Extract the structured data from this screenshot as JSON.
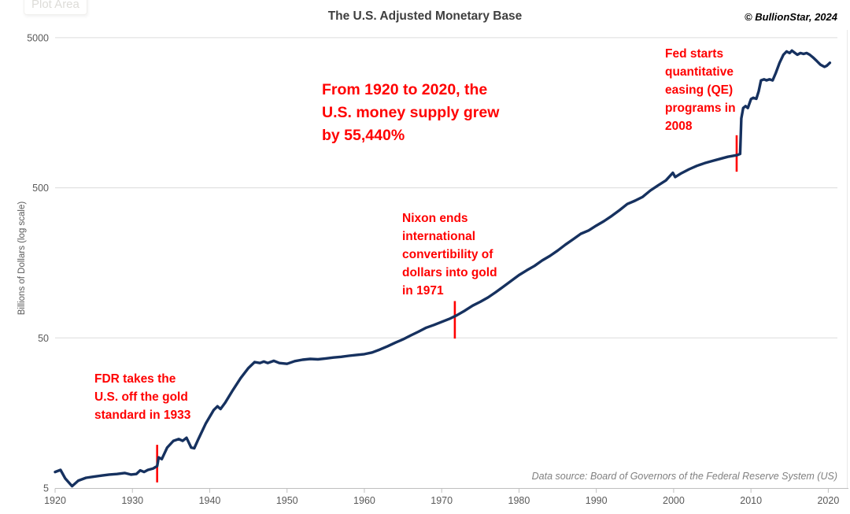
{
  "header": {
    "title": "The U.S. Adjusted Monetary Base",
    "copyright": "© BullionStar, 2024",
    "plot_area_tooltip": "Plot Area"
  },
  "footer": {
    "data_source": "Data source: Board of Governors of the Federal Reserve System (US)"
  },
  "annotations": {
    "growth": {
      "text": "From 1920 to 2020, the\nU.S. money supply grew\nby 55,440%"
    },
    "fed": {
      "text": "Fed starts\nquantitative\neasing (QE)\nprograms in\n2008"
    },
    "nixon": {
      "text": "Nixon ends\ninternational\nconvertibility of\ndollars into gold\nin 1971"
    },
    "fdr": {
      "text": "FDR takes the\nU.S. off the gold\nstandard in 1933"
    }
  },
  "colors": {
    "line": "#16315f",
    "annotation_red": "#ff0000",
    "event_marker_red": "#ff0000",
    "gridline": "#dcdcdc",
    "axis_line": "#bfbfbf",
    "tick_text": "#595959",
    "title_text": "#3f3f3f",
    "right_border": "#e9e9e9"
  },
  "chart_data": {
    "type": "line",
    "title": "The U.S. Adjusted Monetary Base",
    "xlabel": "",
    "ylabel": "Billions of Dollars (log scale)",
    "y_scale": "log",
    "y_ticks": [
      5,
      50,
      500,
      5000
    ],
    "y_range": [
      5,
      5000
    ],
    "x_ticks": [
      1920,
      1930,
      1940,
      1950,
      1960,
      1970,
      1980,
      1990,
      2000,
      2010,
      2020
    ],
    "x_range": [
      1920,
      2020.5
    ],
    "grid": "horizontal-only",
    "legend": "none",
    "series": [
      {
        "name": "U.S. Adjusted Monetary Base ($B)",
        "points": [
          [
            1920.0,
            6.4
          ],
          [
            1920.7,
            6.6
          ],
          [
            1921.3,
            5.8
          ],
          [
            1922.2,
            5.15
          ],
          [
            1923,
            5.6
          ],
          [
            1924,
            5.85
          ],
          [
            1925,
            5.95
          ],
          [
            1926,
            6.05
          ],
          [
            1927,
            6.15
          ],
          [
            1928,
            6.2
          ],
          [
            1929,
            6.3
          ],
          [
            1929.8,
            6.15
          ],
          [
            1930.5,
            6.2
          ],
          [
            1931,
            6.55
          ],
          [
            1931.5,
            6.4
          ],
          [
            1932,
            6.6
          ],
          [
            1932.7,
            6.75
          ],
          [
            1933.2,
            7.0
          ],
          [
            1933.4,
            8.0
          ],
          [
            1933.8,
            7.8
          ],
          [
            1934.5,
            9.3
          ],
          [
            1935.3,
            10.3
          ],
          [
            1936,
            10.6
          ],
          [
            1936.5,
            10.3
          ],
          [
            1937,
            10.8
          ],
          [
            1937.6,
            9.3
          ],
          [
            1938,
            9.2
          ],
          [
            1938.5,
            10.5
          ],
          [
            1939.5,
            13.5
          ],
          [
            1940.5,
            16.5
          ],
          [
            1941,
            17.5
          ],
          [
            1941.4,
            16.8
          ],
          [
            1942,
            18.5
          ],
          [
            1943,
            22.5
          ],
          [
            1944,
            27
          ],
          [
            1945,
            31.5
          ],
          [
            1945.8,
            34.5
          ],
          [
            1946.5,
            34
          ],
          [
            1947,
            34.8
          ],
          [
            1947.5,
            34
          ],
          [
            1948.3,
            35.2
          ],
          [
            1949,
            34
          ],
          [
            1950,
            33.6
          ],
          [
            1951,
            35
          ],
          [
            1952,
            35.8
          ],
          [
            1953,
            36.2
          ],
          [
            1954,
            36
          ],
          [
            1955,
            36.5
          ],
          [
            1956,
            37
          ],
          [
            1957,
            37.4
          ],
          [
            1958,
            38
          ],
          [
            1959,
            38.5
          ],
          [
            1960,
            39
          ],
          [
            1961,
            40
          ],
          [
            1962,
            41.8
          ],
          [
            1963,
            44
          ],
          [
            1964,
            46.5
          ],
          [
            1965,
            48.9
          ],
          [
            1966,
            52
          ],
          [
            1967,
            55
          ],
          [
            1968,
            58.5
          ],
          [
            1969,
            61
          ],
          [
            1970,
            64
          ],
          [
            1971,
            67
          ],
          [
            1972,
            71
          ],
          [
            1973,
            76
          ],
          [
            1974,
            82
          ],
          [
            1975,
            87
          ],
          [
            1976,
            93
          ],
          [
            1977,
            101
          ],
          [
            1978,
            110
          ],
          [
            1979,
            120
          ],
          [
            1980,
            131
          ],
          [
            1981,
            141
          ],
          [
            1982,
            151
          ],
          [
            1983,
            164
          ],
          [
            1984,
            176
          ],
          [
            1985,
            191
          ],
          [
            1986,
            209
          ],
          [
            1987,
            227
          ],
          [
            1988,
            247
          ],
          [
            1989,
            260
          ],
          [
            1990,
            280
          ],
          [
            1991,
            300
          ],
          [
            1992,
            325
          ],
          [
            1993,
            355
          ],
          [
            1994,
            390
          ],
          [
            1995,
            410
          ],
          [
            1996,
            435
          ],
          [
            1997,
            480
          ],
          [
            1998,
            520
          ],
          [
            1999,
            560
          ],
          [
            1999.9,
            630
          ],
          [
            2000.2,
            590
          ],
          [
            2001,
            625
          ],
          [
            2002,
            665
          ],
          [
            2003,
            700
          ],
          [
            2004,
            730
          ],
          [
            2005,
            755
          ],
          [
            2006,
            780
          ],
          [
            2007,
            805
          ],
          [
            2008.2,
            825
          ],
          [
            2008.6,
            840
          ],
          [
            2008.75,
            1450
          ],
          [
            2009.0,
            1700
          ],
          [
            2009.3,
            1750
          ],
          [
            2009.6,
            1700
          ],
          [
            2010.0,
            1950
          ],
          [
            2010.3,
            1990
          ],
          [
            2010.7,
            1960
          ],
          [
            2011.0,
            2200
          ],
          [
            2011.3,
            2600
          ],
          [
            2011.7,
            2640
          ],
          [
            2012.0,
            2600
          ],
          [
            2012.4,
            2640
          ],
          [
            2012.8,
            2600
          ],
          [
            2013.2,
            2900
          ],
          [
            2013.7,
            3400
          ],
          [
            2014.2,
            3850
          ],
          [
            2014.6,
            4050
          ],
          [
            2015.0,
            3950
          ],
          [
            2015.3,
            4100
          ],
          [
            2015.7,
            3950
          ],
          [
            2016.0,
            3850
          ],
          [
            2016.4,
            3950
          ],
          [
            2016.8,
            3900
          ],
          [
            2017.2,
            3950
          ],
          [
            2017.6,
            3850
          ],
          [
            2018.0,
            3700
          ],
          [
            2018.5,
            3500
          ],
          [
            2019.0,
            3300
          ],
          [
            2019.5,
            3200
          ],
          [
            2019.8,
            3250
          ],
          [
            2020.2,
            3400
          ]
        ]
      }
    ],
    "event_markers": [
      {
        "year": 1933.2,
        "event": "FDR takes the U.S. off the gold standard",
        "value_top": 9.7,
        "value_bottom": 5.45
      },
      {
        "year": 1971.7,
        "event": "Nixon ends international convertibility of dollars into gold",
        "value_top": 88,
        "value_bottom": 49.5
      },
      {
        "year": 2008.15,
        "event": "Fed starts quantitative easing (QE) programs",
        "value_top": 1120,
        "value_bottom": 640
      }
    ]
  }
}
